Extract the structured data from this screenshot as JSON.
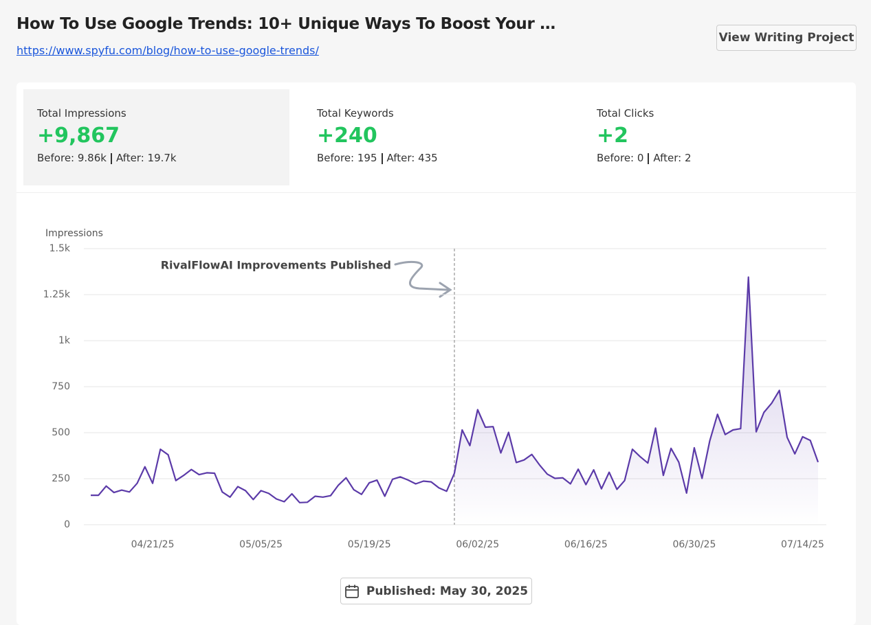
{
  "header": {
    "title": "How To Use Google Trends: 10+ Unique Ways To Boost Your …",
    "url": "https://www.spyfu.com/blog/how-to-use-google-trends/",
    "button": "View Writing Project"
  },
  "stats": [
    {
      "label": "Total Impressions",
      "value": "+9,867",
      "before": "Before: 9.86k",
      "after": "After: 19.7k"
    },
    {
      "label": "Total Keywords",
      "value": "+240",
      "before": "Before: 195",
      "after": "After: 435"
    },
    {
      "label": "Total Clicks",
      "value": "+2",
      "before": "Before: 0",
      "after": "After: 2"
    }
  ],
  "published": "Published: May 30, 2025",
  "chart_data": {
    "type": "area",
    "y_label": "Impressions",
    "color": "#5b3aa8",
    "grid": true,
    "annotation": {
      "text": "RivalFlowAI Improvements Published",
      "x": "05/30/25"
    },
    "x": [
      "04/13/25",
      "04/14/25",
      "04/15/25",
      "04/16/25",
      "04/17/25",
      "04/18/25",
      "04/19/25",
      "04/20/25",
      "04/21/25",
      "04/22/25",
      "04/23/25",
      "04/24/25",
      "04/25/25",
      "04/26/25",
      "04/27/25",
      "04/28/25",
      "04/29/25",
      "04/30/25",
      "05/01/25",
      "05/02/25",
      "05/03/25",
      "05/04/25",
      "05/05/25",
      "05/06/25",
      "05/07/25",
      "05/08/25",
      "05/09/25",
      "05/10/25",
      "05/11/25",
      "05/12/25",
      "05/13/25",
      "05/14/25",
      "05/15/25",
      "05/16/25",
      "05/17/25",
      "05/18/25",
      "05/19/25",
      "05/20/25",
      "05/21/25",
      "05/22/25",
      "05/23/25",
      "05/24/25",
      "05/25/25",
      "05/26/25",
      "05/27/25",
      "05/28/25",
      "05/29/25",
      "05/30/25",
      "05/31/25",
      "06/01/25",
      "06/02/25",
      "06/03/25",
      "06/04/25",
      "06/05/25",
      "06/06/25",
      "06/07/25",
      "06/08/25",
      "06/09/25",
      "06/10/25",
      "06/11/25",
      "06/12/25",
      "06/13/25",
      "06/14/25",
      "06/15/25",
      "06/16/25",
      "06/17/25",
      "06/18/25",
      "06/19/25",
      "06/20/25",
      "06/21/25",
      "06/22/25",
      "06/23/25",
      "06/24/25",
      "06/25/25",
      "06/26/25",
      "06/27/25",
      "06/28/25",
      "06/29/25",
      "06/30/25",
      "07/01/25",
      "07/02/25",
      "07/03/25",
      "07/04/25",
      "07/05/25",
      "07/06/25",
      "07/07/25",
      "07/08/25",
      "07/09/25",
      "07/10/25",
      "07/11/25",
      "07/12/25",
      "07/13/25",
      "07/14/25",
      "07/15/25",
      "07/16/25"
    ],
    "values": [
      160,
      160,
      210,
      175,
      188,
      178,
      225,
      315,
      225,
      410,
      380,
      240,
      268,
      300,
      272,
      282,
      280,
      178,
      150,
      207,
      185,
      137,
      185,
      170,
      140,
      125,
      168,
      120,
      122,
      155,
      150,
      158,
      215,
      255,
      190,
      165,
      228,
      242,
      155,
      247,
      260,
      243,
      222,
      237,
      233,
      200,
      182,
      280,
      515,
      430,
      625,
      530,
      533,
      390,
      502,
      338,
      352,
      382,
      325,
      275,
      252,
      255,
      222,
      302,
      218,
      298,
      195,
      285,
      192,
      240,
      410,
      370,
      335,
      525,
      268,
      415,
      340,
      172,
      418,
      252,
      455,
      600,
      490,
      515,
      522,
      1345,
      505,
      610,
      660,
      730,
      475,
      385,
      478,
      458,
      340
    ],
    "ylim": [
      0,
      1500
    ],
    "yticks": [
      0,
      250,
      500,
      750,
      {
        "value": 1000,
        "label": "1k"
      },
      {
        "value": 1250,
        "label": "1.25k"
      },
      {
        "value": 1500,
        "label": "1.5k"
      }
    ],
    "xticks": [
      "04/21/25",
      "05/05/25",
      "05/19/25",
      "06/02/25",
      "06/16/25",
      "06/30/25",
      "07/14/25"
    ]
  }
}
